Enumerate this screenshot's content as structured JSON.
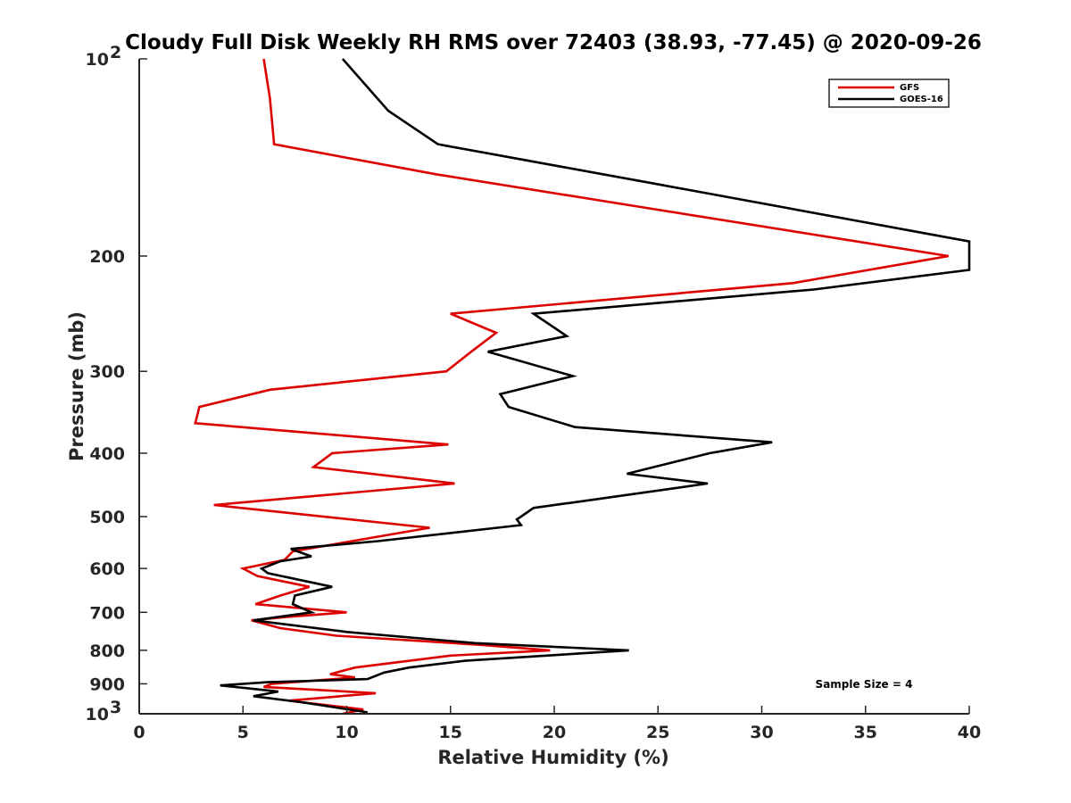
{
  "chart_data": {
    "type": "line",
    "title": "Cloudy Full Disk Weekly RH RMS over 72403 (38.93, -77.45) @ 2020-09-26",
    "xlabel": "Relative Humidity (%)",
    "ylabel": "Pressure (mb)",
    "xlim": [
      0,
      40
    ],
    "ylim": [
      100,
      1000
    ],
    "yscale": "log",
    "yreversed": true,
    "grid": false,
    "legend_position": "top-right",
    "annotation": "Sample Size = 4",
    "x_ticks": [
      {
        "value": 0,
        "label": "0"
      },
      {
        "value": 5,
        "label": "5"
      },
      {
        "value": 10,
        "label": "10"
      },
      {
        "value": 15,
        "label": "15"
      },
      {
        "value": 20,
        "label": "20"
      },
      {
        "value": 25,
        "label": "25"
      },
      {
        "value": 30,
        "label": "30"
      },
      {
        "value": 35,
        "label": "35"
      },
      {
        "value": 40,
        "label": "40"
      }
    ],
    "y_ticks": [
      {
        "value": 100,
        "base": "10",
        "exp": "2"
      },
      {
        "value": 200,
        "label": "200"
      },
      {
        "value": 300,
        "label": "300"
      },
      {
        "value": 400,
        "label": "400"
      },
      {
        "value": 500,
        "label": "500"
      },
      {
        "value": 600,
        "label": "600"
      },
      {
        "value": 700,
        "label": "700"
      },
      {
        "value": 800,
        "label": "800"
      },
      {
        "value": 900,
        "label": "900"
      },
      {
        "value": 1000,
        "base": "10",
        "exp": "3"
      }
    ],
    "series": [
      {
        "name": "GFS",
        "color": "#dd0000",
        "points": [
          [
            6.0,
            100
          ],
          [
            6.3,
            115
          ],
          [
            6.5,
            135
          ],
          [
            14.3,
            150
          ],
          [
            25.0,
            170
          ],
          [
            39.0,
            200
          ],
          [
            31.5,
            220
          ],
          [
            15.0,
            245
          ],
          [
            17.2,
            262
          ],
          [
            16.0,
            280
          ],
          [
            14.8,
            300
          ],
          [
            6.3,
            320
          ],
          [
            2.9,
            340
          ],
          [
            2.7,
            360
          ],
          [
            14.9,
            388
          ],
          [
            9.3,
            400
          ],
          [
            8.4,
            420
          ],
          [
            15.2,
            445
          ],
          [
            3.6,
            480
          ],
          [
            14.0,
            520
          ],
          [
            7.4,
            565
          ],
          [
            7.0,
            582
          ],
          [
            5.0,
            600
          ],
          [
            5.7,
            616
          ],
          [
            8.2,
            640
          ],
          [
            6.8,
            660
          ],
          [
            5.6,
            680
          ],
          [
            10.0,
            700
          ],
          [
            7.0,
            712
          ],
          [
            5.4,
            720
          ],
          [
            6.8,
            740
          ],
          [
            9.5,
            760
          ],
          [
            16.5,
            785
          ],
          [
            19.8,
            800
          ],
          [
            15.0,
            815
          ],
          [
            10.4,
            850
          ],
          [
            9.2,
            870
          ],
          [
            10.4,
            880
          ],
          [
            6.4,
            900
          ],
          [
            6.0,
            910
          ],
          [
            11.4,
            930
          ],
          [
            7.2,
            955
          ],
          [
            10.8,
            985
          ],
          [
            9.8,
            1000
          ]
        ]
      },
      {
        "name": "GOES-16",
        "color": "#000000",
        "points": [
          [
            9.8,
            100
          ],
          [
            12.0,
            120
          ],
          [
            14.4,
            135
          ],
          [
            24.8,
            155
          ],
          [
            40.0,
            190
          ],
          [
            40.0,
            210
          ],
          [
            32.5,
            225
          ],
          [
            19.0,
            245
          ],
          [
            20.6,
            265
          ],
          [
            16.8,
            280
          ],
          [
            20.9,
            305
          ],
          [
            17.4,
            325
          ],
          [
            17.8,
            340
          ],
          [
            21.0,
            365
          ],
          [
            30.5,
            385
          ],
          [
            27.5,
            400
          ],
          [
            23.5,
            430
          ],
          [
            27.4,
            445
          ],
          [
            22.1,
            470
          ],
          [
            19.0,
            485
          ],
          [
            18.4,
            500
          ],
          [
            18.2,
            505
          ],
          [
            18.4,
            515
          ],
          [
            11.5,
            545
          ],
          [
            7.3,
            560
          ],
          [
            8.3,
            575
          ],
          [
            6.8,
            585
          ],
          [
            5.9,
            600
          ],
          [
            6.2,
            610
          ],
          [
            9.3,
            640
          ],
          [
            7.5,
            660
          ],
          [
            7.4,
            680
          ],
          [
            8.3,
            700
          ],
          [
            5.5,
            720
          ],
          [
            10.0,
            750
          ],
          [
            16.2,
            780
          ],
          [
            23.6,
            800
          ],
          [
            15.7,
            830
          ],
          [
            13.0,
            850
          ],
          [
            11.8,
            865
          ],
          [
            11.0,
            885
          ],
          [
            6.2,
            895
          ],
          [
            3.9,
            905
          ],
          [
            6.7,
            925
          ],
          [
            5.5,
            940
          ],
          [
            7.8,
            960
          ],
          [
            11.0,
            995
          ]
        ]
      }
    ]
  }
}
